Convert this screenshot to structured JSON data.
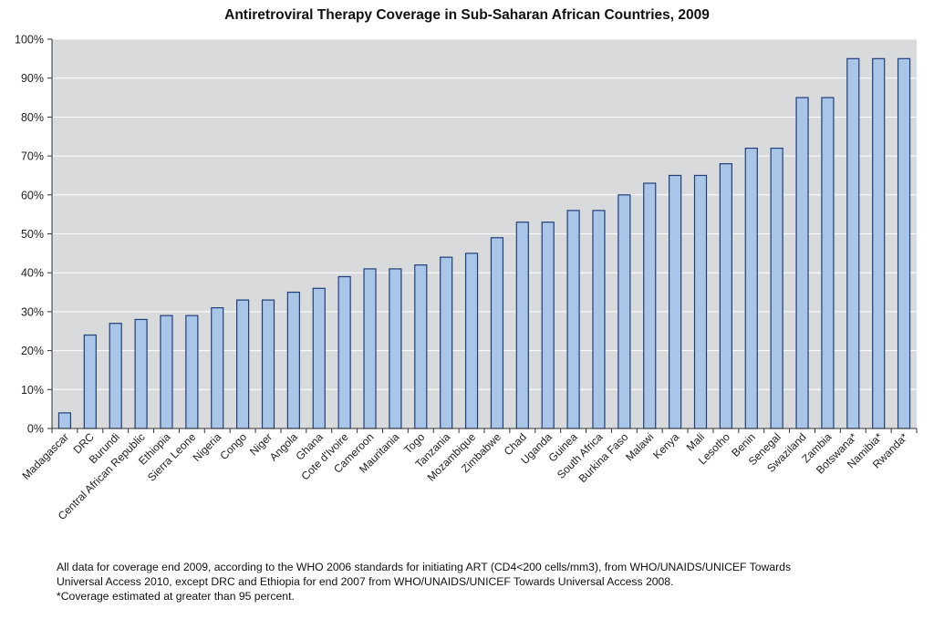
{
  "chart_data": {
    "type": "bar",
    "title": "Antiretroviral Therapy Coverage in Sub-Saharan African Countries, 2009",
    "xlabel": "",
    "ylabel": "",
    "ylim": [
      0,
      100
    ],
    "yticks": [
      "0%",
      "10%",
      "20%",
      "30%",
      "40%",
      "50%",
      "60%",
      "70%",
      "80%",
      "90%",
      "100%"
    ],
    "grid": true,
    "categories": [
      "Madagascar",
      "DRC",
      "Burundi",
      "Central African Republic",
      "Ethiopia",
      "Sierra Leone",
      "Nigeria",
      "Congo",
      "Niger",
      "Angola",
      "Ghana",
      "Cote d'Ivoire",
      "Cameroon",
      "Mauritania",
      "Togo",
      "Tanzania",
      "Mozambique",
      "Zimbabwe",
      "Chad",
      "Uganda",
      "Guinea",
      "South Africa",
      "Burkina Faso",
      "Malawi",
      "Kenya",
      "Mali",
      "Lesotho",
      "Benin",
      "Senegal",
      "Swaziland",
      "Zambia",
      "Botswana*",
      "Namibia*",
      "Rwanda*"
    ],
    "values": [
      4,
      24,
      27,
      28,
      29,
      29,
      31,
      33,
      33,
      35,
      36,
      39,
      41,
      41,
      42,
      44,
      45,
      49,
      53,
      53,
      56,
      56,
      60,
      63,
      65,
      65,
      68,
      72,
      72,
      85,
      85,
      95,
      95,
      95
    ],
    "colors": {
      "bar_fill": "#a9c6e8",
      "bar_stroke": "#1f3f78",
      "plot_bg": "#d9dadc",
      "grid": "#ffffff",
      "axis": "#333333"
    }
  },
  "footnote": {
    "line1": "All data for coverage end 2009, according to the WHO 2006 standards for initiating ART (CD4<200 cells/mm3), from WHO/UNAIDS/UNICEF Towards",
    "line2": "Universal Access 2010, except DRC and Ethiopia for end 2007 from WHO/UNAIDS/UNICEF Towards Universal Access 2008.",
    "line3": "*Coverage estimated at greater than 95 percent."
  }
}
